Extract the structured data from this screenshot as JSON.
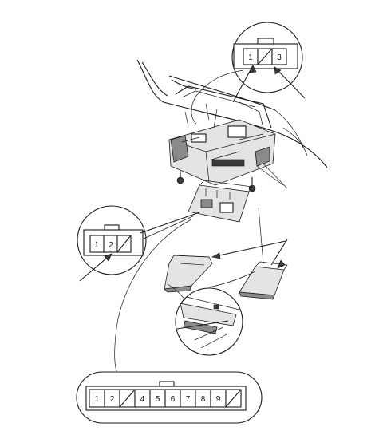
{
  "connectors": {
    "top": {
      "pins": [
        "1",
        "",
        "3"
      ]
    },
    "left": {
      "pins": [
        "1",
        "2",
        ""
      ]
    },
    "bottom": {
      "pins": [
        "1",
        "2",
        "",
        "4",
        "5",
        "6",
        "7",
        "8",
        "9",
        ""
      ]
    }
  }
}
